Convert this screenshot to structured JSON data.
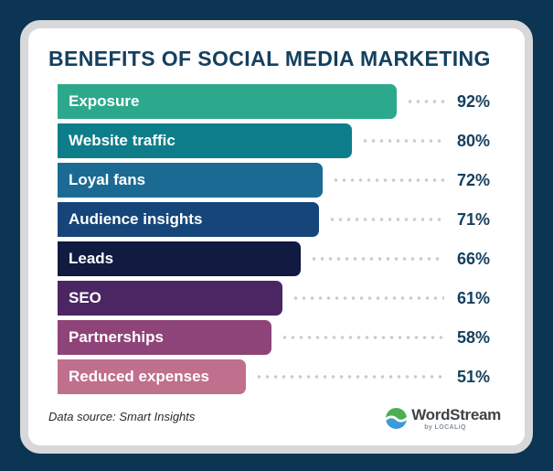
{
  "page": {
    "background_color": "#0C3553",
    "card_background": "#FFFFFF",
    "card_border_color": "#D8D8DA"
  },
  "title": "BENEFITS OF SOCIAL MEDIA MARKETING",
  "chart_data": {
    "type": "bar",
    "orientation": "horizontal",
    "title": "BENEFITS OF SOCIAL MEDIA MARKETING",
    "categories": [
      "Exposure",
      "Website traffic",
      "Loyal fans",
      "Audience insights",
      "Leads",
      "SEO",
      "Partnerships",
      "Reduced expenses"
    ],
    "values": [
      92,
      80,
      72,
      71,
      66,
      61,
      58,
      51
    ],
    "value_labels": [
      "92%",
      "80%",
      "72%",
      "71%",
      "66%",
      "61%",
      "58%",
      "51%"
    ],
    "unit": "%",
    "xlim": [
      0,
      100
    ],
    "bar_colors": [
      "#2CA98C",
      "#0E7D8A",
      "#1B6A94",
      "#164579",
      "#111A40",
      "#4B2663",
      "#8F4479",
      "#C06F8C"
    ],
    "value_label_color": "#15405F",
    "leader_dot_color": "#C8CCD0",
    "grid": false,
    "legend": false
  },
  "footer": {
    "data_source": "Data source: Smart Insights",
    "brand_name": "WordStream",
    "brand_sub": "by LOCALiQ",
    "brand_logo": "wave-circle-icon",
    "brand_logo_colors": {
      "top": "#4CAE50",
      "bottom": "#3B9AD9",
      "wave": "#FFFFFF"
    }
  }
}
